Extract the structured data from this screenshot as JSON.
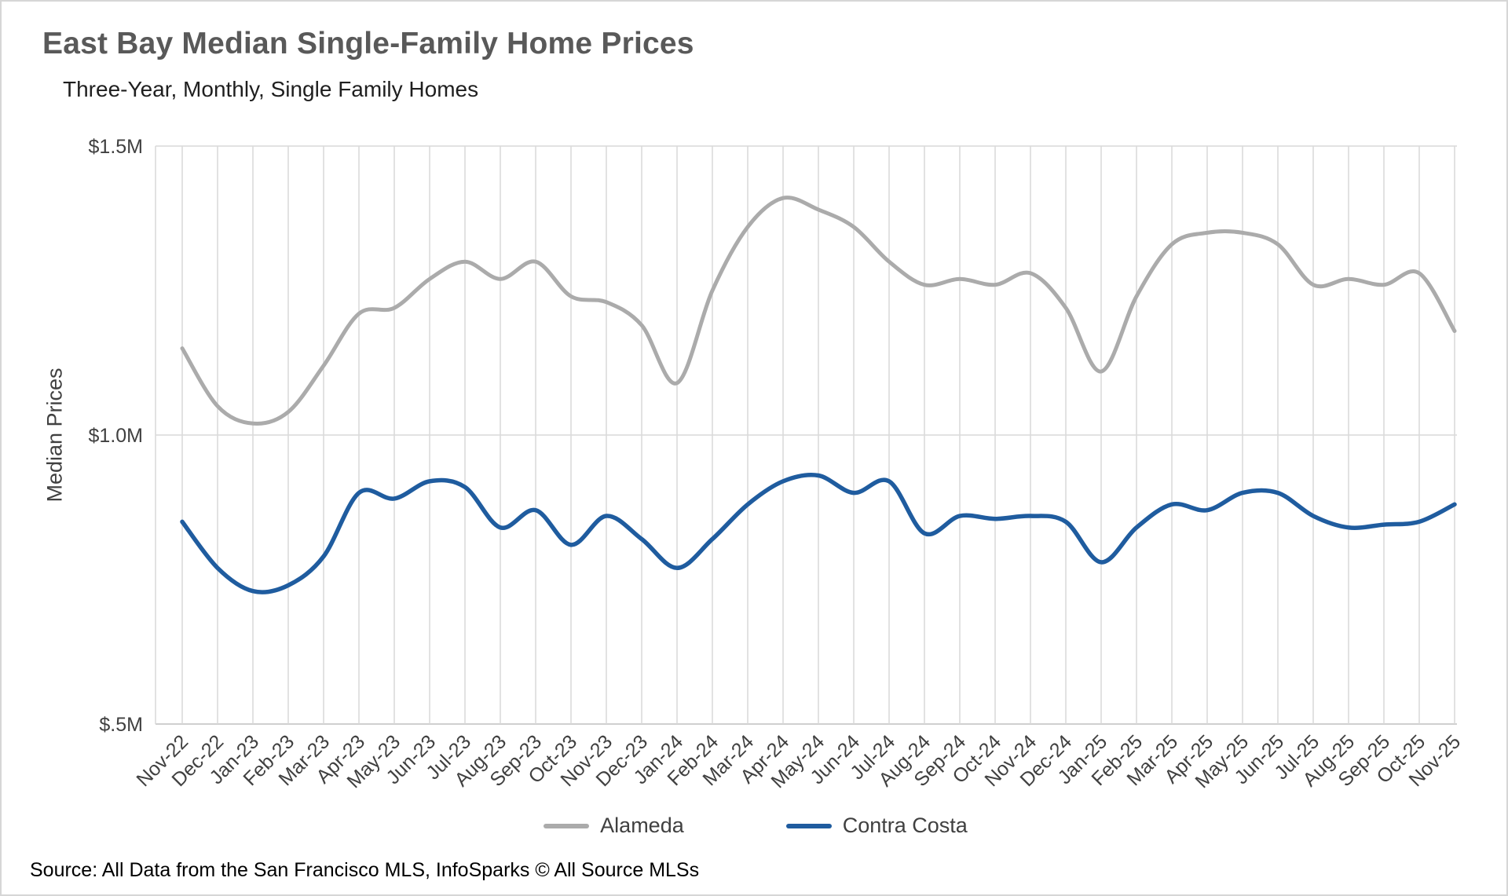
{
  "page": {
    "source_note": "Source: All Data from the San Francisco MLS, InfoSparks © All Source MLSs"
  },
  "chart_data": {
    "type": "line",
    "title": "East Bay Median Single-Family Home Prices",
    "subtitle": "Three-Year, Monthly, Single Family Homes",
    "xlabel": "",
    "ylabel": "Median Prices",
    "units": "millions USD",
    "ylim": [
      0.5,
      1.5
    ],
    "y_ticks": [
      {
        "value": 1.5,
        "label": "$1.5M"
      },
      {
        "value": 1.0,
        "label": "$1.0M"
      },
      {
        "value": 0.5,
        "label": "$.5M"
      }
    ],
    "grid": "vertical per month + horizontal at y ticks",
    "legend_position": "bottom",
    "line_style": "smoothed",
    "categories": [
      "Nov-22",
      "Dec-22",
      "Jan-23",
      "Feb-23",
      "Mar-23",
      "Apr-23",
      "May-23",
      "Jun-23",
      "Jul-23",
      "Aug-23",
      "Sep-23",
      "Oct-23",
      "Nov-23",
      "Dec-23",
      "Jan-24",
      "Feb-24",
      "Mar-24",
      "Apr-24",
      "May-24",
      "Jun-24",
      "Jul-24",
      "Aug-24",
      "Sep-24",
      "Oct-24",
      "Nov-24",
      "Dec-24",
      "Jan-25",
      "Feb-25",
      "Mar-25",
      "Apr-25",
      "May-25",
      "Jun-25",
      "Jul-25",
      "Aug-25",
      "Sep-25",
      "Oct-25",
      "Nov-25"
    ],
    "series": [
      {
        "name": "Alameda",
        "color": "#ABABAB",
        "stroke_width": 5,
        "values": [
          1.15,
          1.05,
          1.02,
          1.04,
          1.12,
          1.21,
          1.22,
          1.27,
          1.3,
          1.27,
          1.3,
          1.24,
          1.23,
          1.19,
          1.09,
          1.25,
          1.36,
          1.41,
          1.39,
          1.36,
          1.3,
          1.26,
          1.27,
          1.26,
          1.28,
          1.22,
          1.11,
          1.24,
          1.33,
          1.35,
          1.35,
          1.33,
          1.26,
          1.27,
          1.26,
          1.28,
          1.18
        ]
      },
      {
        "name": "Contra Costa",
        "color": "#1F5C9F",
        "stroke_width": 5.5,
        "values": [
          0.85,
          0.77,
          0.73,
          0.74,
          0.79,
          0.9,
          0.89,
          0.92,
          0.91,
          0.84,
          0.87,
          0.81,
          0.86,
          0.82,
          0.77,
          0.82,
          0.88,
          0.92,
          0.93,
          0.9,
          0.92,
          0.83,
          0.86,
          0.855,
          0.86,
          0.85,
          0.78,
          0.84,
          0.88,
          0.87,
          0.9,
          0.9,
          0.86,
          0.84,
          0.845,
          0.85,
          0.88
        ]
      }
    ]
  }
}
